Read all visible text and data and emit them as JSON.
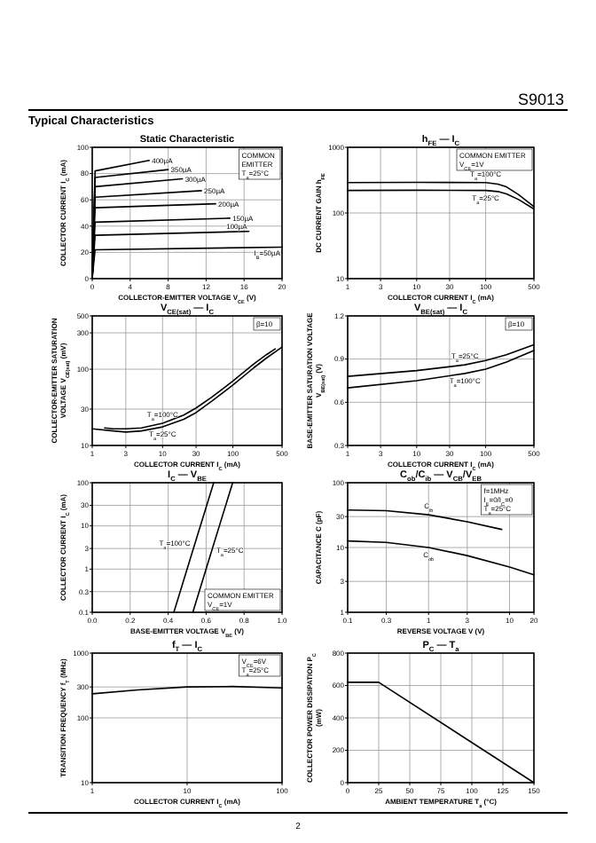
{
  "chart_data": [
    {
      "type": "other",
      "annotations": [
        "S9013",
        "Typical Characteristics",
        "2"
      ]
    },
    {
      "type": "line",
      "title": "Static Characteristic",
      "xlabel": "COLLECTOR-EMITTER VOLTAGE  V$_{CE}$ (V)",
      "ylabel": "COLLECTOR CURRENT  I$_{C}$ (mA)",
      "xlim": [
        0,
        20
      ],
      "ylim": [
        0,
        100
      ],
      "xticks": [
        0,
        4,
        8,
        12,
        16,
        20
      ],
      "yticks": [
        0,
        20,
        40,
        60,
        80,
        100
      ],
      "grid": true,
      "annotations": [
        "COMMON",
        "EMITTER",
        "T$_{a}$=25°C"
      ],
      "series": [
        {
          "name": "400µA",
          "color": "#000000",
          "x": [
            0,
            0.3,
            6
          ],
          "values": [
            0,
            82,
            90
          ]
        },
        {
          "name": "350µA",
          "color": "#000000",
          "x": [
            0,
            0.3,
            8
          ],
          "values": [
            0,
            77,
            83
          ]
        },
        {
          "name": "300µA",
          "color": "#000000",
          "x": [
            0,
            0.3,
            9.5
          ],
          "values": [
            0,
            70,
            76
          ]
        },
        {
          "name": "250µA",
          "color": "#000000",
          "x": [
            0,
            0.3,
            11.5
          ],
          "values": [
            0,
            62,
            67
          ]
        },
        {
          "name": "200µA",
          "color": "#000000",
          "x": [
            0,
            0.3,
            13
          ],
          "values": [
            0,
            54,
            57
          ]
        },
        {
          "name": "150µA",
          "color": "#000000",
          "x": [
            0,
            0.3,
            14.5
          ],
          "values": [
            0,
            43,
            46
          ]
        },
        {
          "name": "100µA",
          "color": "#000000",
          "x": [
            0,
            0.3,
            16.5
          ],
          "values": [
            0,
            33,
            36
          ]
        },
        {
          "name": "I$_{B}$=50µA",
          "color": "#000000",
          "x": [
            0,
            0.3,
            20
          ],
          "values": [
            0,
            22,
            24
          ]
        }
      ]
    },
    {
      "type": "line",
      "title": "h$_{FE}$ — I$_{C}$",
      "xlabel": "COLLECTOR CURRENT  I$_{C}$ (mA)",
      "ylabel": "DC CURRENT GAIN  h$_{FE}$",
      "log": "xy",
      "xlim": [
        1,
        500
      ],
      "ylim": [
        10,
        1000
      ],
      "xticks": [
        1,
        3,
        10,
        30,
        100,
        500
      ],
      "yticks": [
        10,
        100,
        1000
      ],
      "grid": true,
      "annotations": [
        "COMMON EMITTER",
        "V$_{CE}$=1V"
      ],
      "series": [
        {
          "name": "T$_{a}$=100°C",
          "color": "#000000",
          "x": [
            1,
            10,
            100,
            150,
            200,
            300,
            500
          ],
          "values": [
            290,
            293,
            290,
            275,
            250,
            190,
            125
          ]
        },
        {
          "name": "T$_{a}$=25°C",
          "color": "#000000",
          "x": [
            1,
            10,
            100,
            150,
            200,
            300,
            500
          ],
          "values": [
            220,
            222,
            220,
            212,
            195,
            160,
            115
          ]
        }
      ]
    },
    {
      "type": "line",
      "title": "V$_{CE(sat)}$ — I$_{C}$",
      "xlabel": "COLLECTOR CURRENT  I$_{C}$ (mA)",
      "ylabel": "COLLECTOR-EMITTER SATURATION VOLTAGE  V$_{CE(sat)}$ (mV)",
      "log": "xy",
      "xlim": [
        1,
        500
      ],
      "ylim": [
        10,
        500
      ],
      "xticks": [
        1,
        3,
        10,
        30,
        100,
        500
      ],
      "yticks": [
        10,
        30,
        100,
        300,
        500
      ],
      "grid": true,
      "annotations": [
        "β=10"
      ],
      "series": [
        {
          "name": "T$_{a}$=100°C",
          "color": "#000000",
          "x": [
            1.5,
            2,
            3,
            5,
            10,
            20,
            30,
            50,
            100,
            200,
            300,
            400
          ],
          "values": [
            17,
            16.5,
            16.5,
            17,
            19.5,
            25,
            31,
            43,
            70,
            118,
            155,
            185
          ]
        },
        {
          "name": "T$_{a}$=25°C",
          "color": "#000000",
          "x": [
            1,
            2,
            3,
            5,
            10,
            20,
            30,
            50,
            100,
            200,
            300,
            500
          ],
          "values": [
            16.5,
            15.5,
            15,
            15.5,
            17.5,
            22,
            27,
            38,
            62,
            105,
            140,
            195
          ]
        }
      ]
    },
    {
      "type": "line",
      "title": "V$_{BE(sat)}$ — I$_{C}$",
      "xlabel": "COLLECTOR CURRENT  I$_{C}$ (mA)",
      "ylabel": "BASE-EMITTER SATURATION VOLTAGE  V$_{BE(sat)}$ (V)",
      "log": "x",
      "xlim": [
        1,
        500
      ],
      "ylim": [
        0.3,
        1.2
      ],
      "xticks": [
        1,
        3,
        10,
        30,
        100,
        500
      ],
      "yticks": [
        0.3,
        0.6,
        0.9,
        1.2
      ],
      "grid": true,
      "annotations": [
        "β=10"
      ],
      "series": [
        {
          "name": "T$_{a}$=25°C",
          "color": "#000000",
          "x": [
            1,
            10,
            50,
            100,
            200,
            500
          ],
          "values": [
            0.78,
            0.82,
            0.86,
            0.89,
            0.93,
            1.0
          ]
        },
        {
          "name": "T$_{a}$=100°C",
          "color": "#000000",
          "x": [
            1,
            10,
            50,
            100,
            200,
            500
          ],
          "values": [
            0.7,
            0.75,
            0.8,
            0.83,
            0.88,
            0.96
          ]
        }
      ]
    },
    {
      "type": "line",
      "title": "I$_{C}$ — V$_{BE}$",
      "xlabel": "BASE-EMITTER VOLTAGE  V$_{BE}$ (V)",
      "ylabel": "COLLECTOR CURRENT  I$_{C}$ (mA)",
      "log": "y",
      "xlim": [
        0,
        1
      ],
      "ylim": [
        0.1,
        100
      ],
      "xticks": [
        {
          "value": 0,
          "label": "0.0"
        },
        0.2,
        0.4,
        0.6,
        0.8,
        {
          "value": 1,
          "label": "1.0"
        }
      ],
      "yticks": [
        0.1,
        0.3,
        1,
        3,
        10,
        30,
        100
      ],
      "grid": true,
      "annotations": [
        "COMMON EMITTER",
        "V$_{CE}$=1V"
      ],
      "series": [
        {
          "name": "T$_{a}$=100°C",
          "color": "#000000",
          "x": [
            0.43,
            0.535,
            0.64
          ],
          "values": [
            0.1,
            3.2,
            100
          ]
        },
        {
          "name": "T$_{a}$=25°C",
          "color": "#000000",
          "x": [
            0.53,
            0.635,
            0.74
          ],
          "values": [
            0.1,
            3.2,
            100
          ]
        }
      ]
    },
    {
      "type": "line",
      "title": "C$_{ob}$/C$_{ib}$ — V$_{CB}$/V$_{EB}$",
      "xlabel": "REVERSE VOLTAGE  V (V)",
      "ylabel": "CAPACITANCE  C (pF)",
      "log": "xy",
      "xlim": [
        0.1,
        20
      ],
      "ylim": [
        1,
        100
      ],
      "xticks": [
        0.1,
        0.3,
        1,
        3,
        10,
        20
      ],
      "yticks": [
        1,
        3,
        10,
        30,
        100
      ],
      "grid": true,
      "annotations": [
        "f=1MHz",
        "I$_{E}$=0/I$_{C}$=0",
        "T$_{a}$=25°C"
      ],
      "series": [
        {
          "name": "C$_{ib}$",
          "color": "#000000",
          "x": [
            0.1,
            0.3,
            1,
            3,
            8
          ],
          "values": [
            38,
            37,
            32,
            25,
            19
          ]
        },
        {
          "name": "C$_{ob}$",
          "color": "#000000",
          "x": [
            0.1,
            0.3,
            1,
            3,
            10,
            20
          ],
          "values": [
            12.6,
            12,
            10,
            7.5,
            5,
            3.8
          ]
        }
      ]
    },
    {
      "type": "line",
      "title": "f$_{T}$ — I$_{C}$",
      "xlabel": "COLLECTOR CURRENT  I$_{C}$ (mA)",
      "ylabel": "TRANSITION FREQUENCY  f$_{T}$ (MHz)",
      "log": "xy",
      "xlim": [
        1,
        100
      ],
      "ylim": [
        10,
        1000
      ],
      "xticks": [
        1,
        10,
        100
      ],
      "yticks": [
        10,
        100,
        300,
        1000
      ],
      "grid": true,
      "annotations": [
        "V$_{CE}$=6V",
        "T$_{a}$=25°C"
      ],
      "series": [
        {
          "color": "#000000",
          "x": [
            1,
            3,
            10,
            30,
            100
          ],
          "values": [
            235,
            270,
            300,
            305,
            290
          ]
        }
      ]
    },
    {
      "type": "line",
      "title": "P$_{C}$ — T$_{a}$",
      "xlabel": "AMBIENT TEMPERATURE  T$_{a}$ (°C)",
      "ylabel": "COLLECTOR POWER DISSIPATION  P$_{C}$ (mW)",
      "xlim": [
        0,
        150
      ],
      "ylim": [
        0,
        800
      ],
      "xticks": [
        0,
        25,
        50,
        75,
        100,
        125,
        150
      ],
      "yticks": [
        0,
        200,
        400,
        600,
        800
      ],
      "grid": true,
      "series": [
        {
          "color": "#000000",
          "x": [
            0,
            25,
            150
          ],
          "values": [
            620,
            620,
            0
          ]
        }
      ]
    }
  ]
}
